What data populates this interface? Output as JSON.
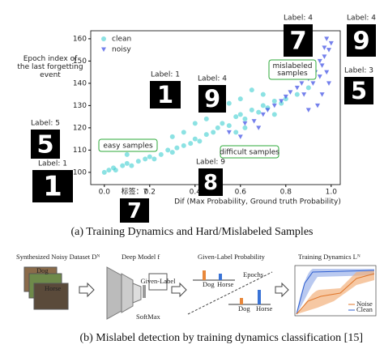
{
  "chart_data": {
    "type": "scatter",
    "xlabel": "Dif (Max Probability, Ground truth Probability)",
    "ylabel": "Epoch index of the last forgetting event",
    "xlim": [
      -0.06,
      1.04
    ],
    "ylim": [
      94.5,
      163.6
    ],
    "xticks": [
      {
        "value": 0,
        "label": "0.0"
      },
      {
        "value": 0.2,
        "label": "0.2"
      },
      {
        "value": 0.4,
        "label": "0.4"
      },
      {
        "value": 0.6,
        "label": "0.6"
      },
      {
        "value": 0.8,
        "label": "0.8"
      },
      {
        "value": 1,
        "label": "1.0"
      }
    ],
    "yticks": [
      100,
      110,
      120,
      130,
      140,
      150,
      160
    ],
    "legend": "upper left",
    "series": [
      {
        "name": "clean",
        "color": "#3fcfd0",
        "marker": "circle",
        "x": [
          0.0,
          0.02,
          0.04,
          0.05,
          0.08,
          0.1,
          0.12,
          0.15,
          0.18,
          0.2,
          0.22,
          0.25,
          0.28,
          0.3,
          0.32,
          0.35,
          0.38,
          0.4,
          0.42,
          0.45,
          0.48,
          0.5,
          0.52,
          0.55,
          0.58,
          0.6,
          0.62,
          0.65,
          0.68,
          0.7,
          0.72,
          0.75,
          0.78,
          0.8,
          0.3,
          0.4,
          0.5,
          0.55,
          0.6,
          0.45,
          0.35,
          0.7,
          0.65,
          0.2,
          0.1,
          0.58,
          0.62,
          0.75,
          0.85,
          0.9
        ],
        "values": [
          100,
          101,
          102,
          101,
          103,
          104,
          103,
          105,
          106,
          107,
          106,
          108,
          110,
          109,
          111,
          112,
          113,
          115,
          114,
          117,
          118,
          120,
          122,
          121,
          125,
          126,
          124,
          128,
          127,
          130,
          129,
          132,
          131,
          133,
          116,
          122,
          128,
          131,
          133,
          124,
          118,
          135,
          137,
          112,
          108,
          118,
          120,
          126,
          135,
          138
        ]
      },
      {
        "name": "noisy",
        "color": "#4656e6",
        "marker": "triangle",
        "x": [
          0.55,
          0.62,
          0.66,
          0.7,
          0.72,
          0.75,
          0.78,
          0.8,
          0.82,
          0.85,
          0.87,
          0.88,
          0.9,
          0.92,
          0.93,
          0.95,
          0.95,
          0.96,
          0.97,
          0.97,
          0.98,
          0.98,
          0.99,
          0.99,
          1.0,
          0.96,
          0.94,
          0.9,
          0.68,
          0.6
        ],
        "values": [
          118,
          122,
          123,
          126,
          128,
          130,
          132,
          134,
          136,
          138,
          140,
          135,
          142,
          140,
          145,
          143,
          150,
          148,
          152,
          156,
          160,
          145,
          155,
          140,
          158,
          135,
          130,
          128,
          120,
          116
        ]
      }
    ],
    "callouts": [
      "easy samples",
      "difficult samples",
      "mislabeled samples"
    ],
    "digit_panels": [
      {
        "label": "Label: 5",
        "digit": "5"
      },
      {
        "label": "Label: 1",
        "digit": "1"
      },
      {
        "label": "Label: 1",
        "digit": "1"
      },
      {
        "label": "Label: 4",
        "digit": "9"
      },
      {
        "label": "Label: 9",
        "digit": "8"
      },
      {
        "label": "标签：7",
        "digit": "7"
      },
      {
        "label": "Label: 4",
        "digit": "7"
      },
      {
        "label": "Label: 4",
        "digit": "9"
      },
      {
        "label": "Label: 3",
        "digit": "5"
      }
    ]
  },
  "caption_a": "(a) Training Dynamics and Hard/Mislabeled Samples",
  "diagram_b": {
    "stages": [
      "Synthesized Noisy Dataset Dᴺ",
      "Deep Model f",
      "Given-Label Probability",
      "Training Dynamics Lᴺ"
    ],
    "images": [
      "Dog",
      "Horse"
    ],
    "softmax": "SoftMax",
    "given_label": "Given-Label",
    "epochs": "Epochs",
    "prob_labels": [
      "Dog",
      "Horse",
      "Dog",
      "Horse"
    ],
    "legend": [
      "Noise",
      "Clean"
    ]
  },
  "caption_b": "(b) Mislabel detection by training dynamics classification [15]"
}
